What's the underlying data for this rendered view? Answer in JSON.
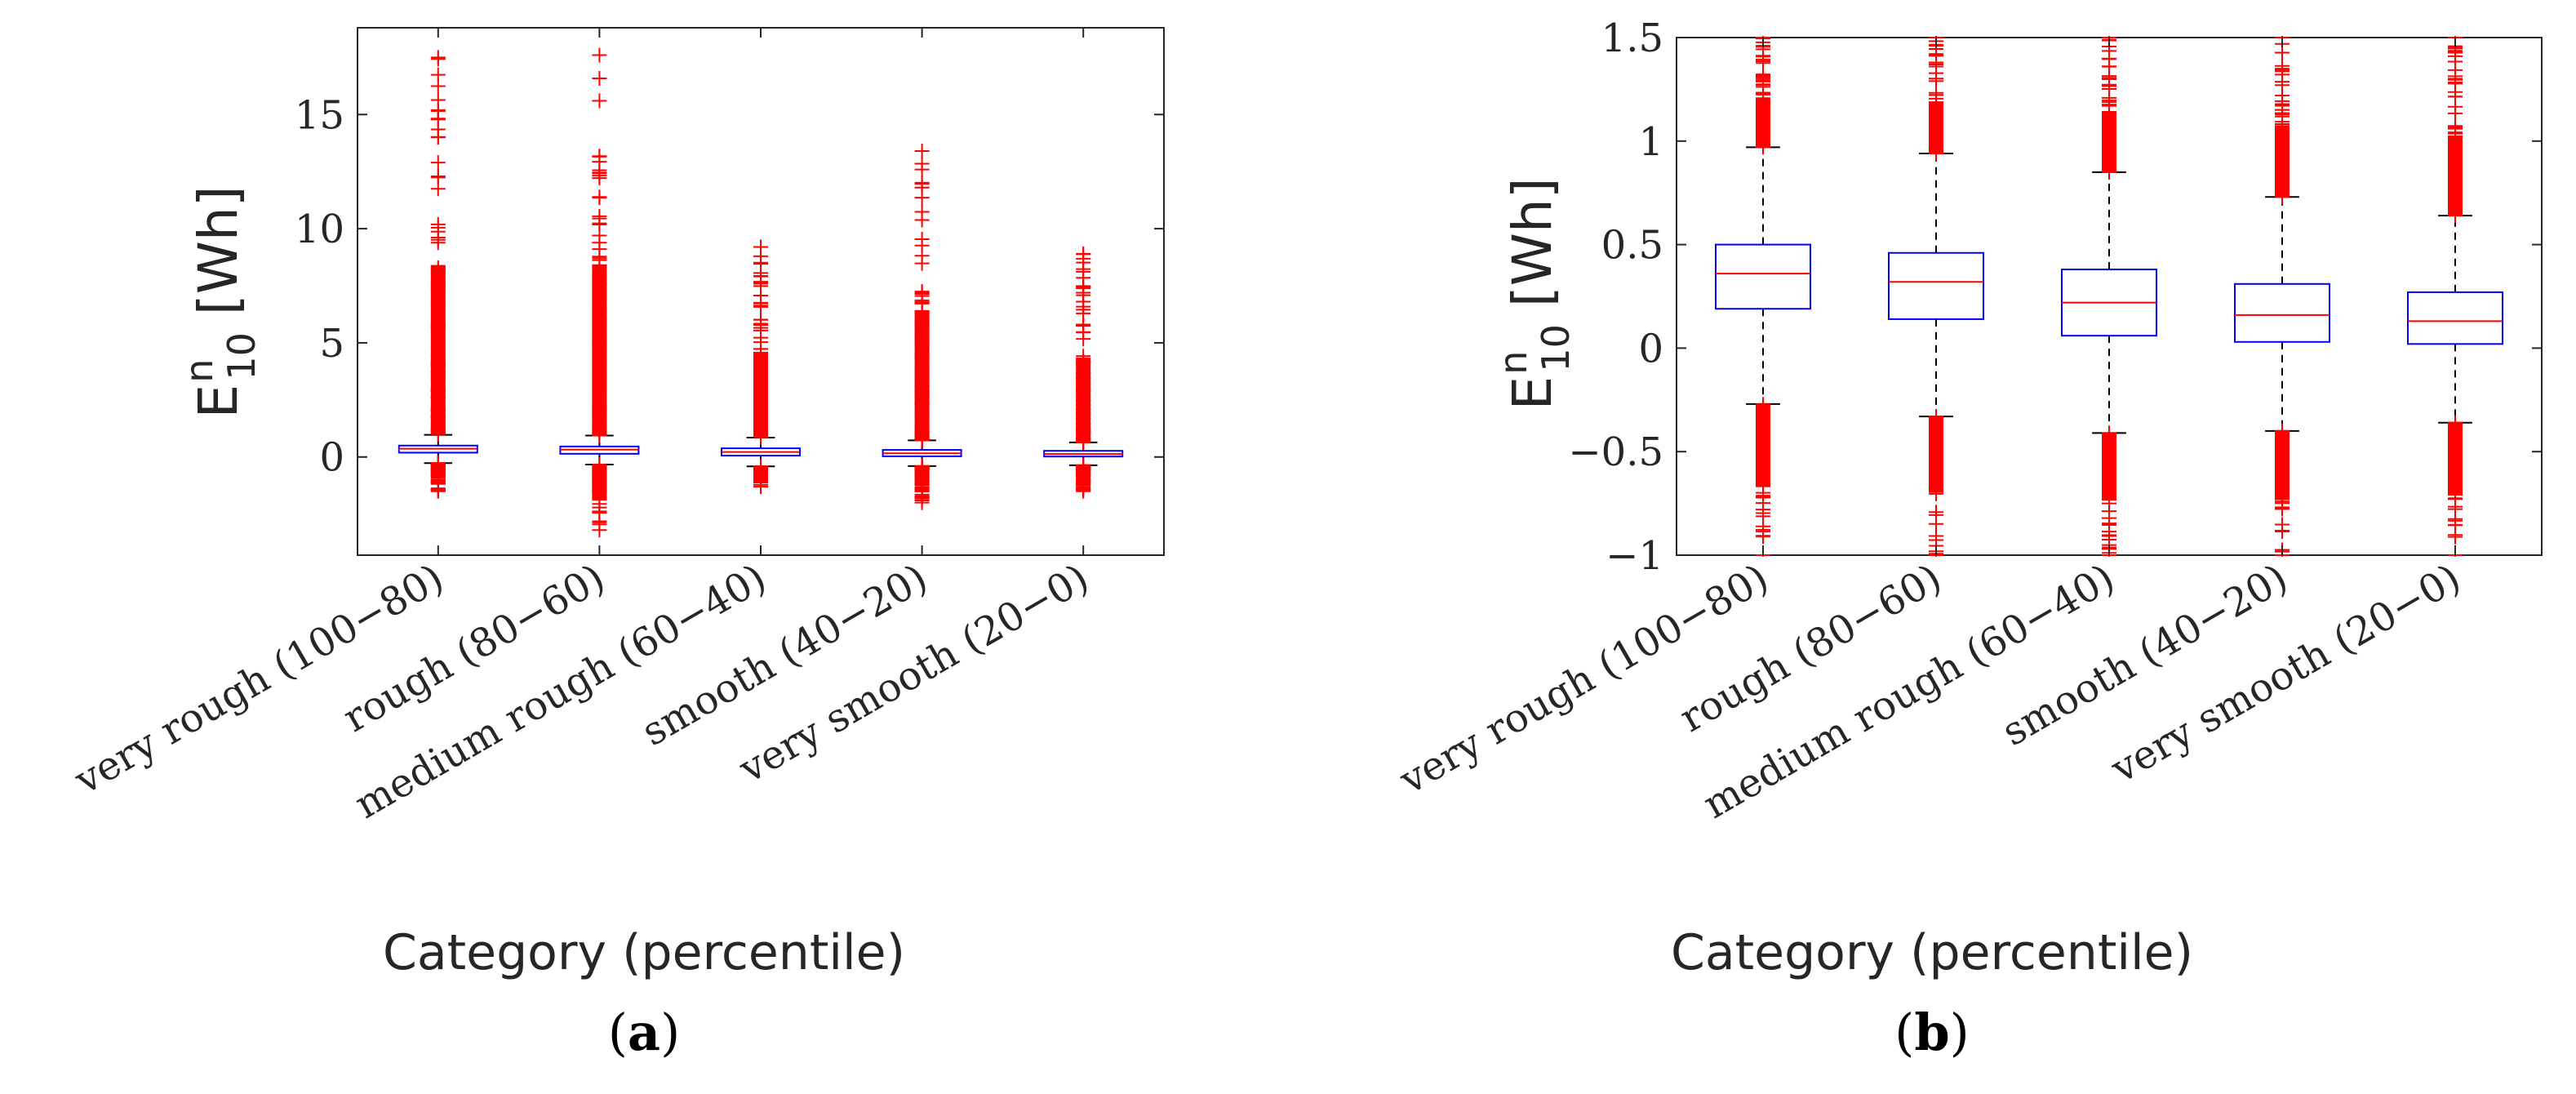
{
  "chart_data": [
    {
      "type": "box",
      "panel_label": "a",
      "ylabel_main": "E",
      "ylabel_sup": "n",
      "ylabel_sub": "10",
      "ylabel_unit": " [Wh]",
      "xlabel": "Category (percentile)",
      "categories": [
        "very rough (100−80)",
        "rough (80−60)",
        "medium rough (60−40)",
        "smooth (40−20)",
        "very smooth (20−0)"
      ],
      "ylim": [
        -4.3,
        18.8
      ],
      "yticks": [
        0,
        5,
        10,
        15
      ],
      "ytick_labels": [
        "0",
        "5",
        "10",
        "15"
      ],
      "series": [
        {
          "q1": 0.19,
          "median": 0.36,
          "q3": 0.5,
          "whisker_low": -0.27,
          "whisker_high": 0.97,
          "outlier_low": -1.5,
          "outlier_high": 17.5
        },
        {
          "q1": 0.14,
          "median": 0.32,
          "q3": 0.46,
          "whisker_low": -0.33,
          "whisker_high": 0.94,
          "outlier_low": -3.2,
          "outlier_high": 17.6
        },
        {
          "q1": 0.06,
          "median": 0.22,
          "q3": 0.38,
          "whisker_low": -0.41,
          "whisker_high": 0.85,
          "outlier_low": -1.3,
          "outlier_high": 9.2
        },
        {
          "q1": 0.03,
          "median": 0.16,
          "q3": 0.31,
          "whisker_low": -0.4,
          "whisker_high": 0.73,
          "outlier_low": -2.0,
          "outlier_high": 13.4
        },
        {
          "q1": 0.02,
          "median": 0.13,
          "q3": 0.27,
          "whisker_low": -0.36,
          "whisker_high": 0.64,
          "outlier_low": -1.5,
          "outlier_high": 8.9
        }
      ]
    },
    {
      "type": "box",
      "panel_label": "b",
      "ylabel_main": "E",
      "ylabel_sup": "n",
      "ylabel_sub": "10",
      "ylabel_unit": " [Wh]",
      "xlabel": "Category (percentile)",
      "categories": [
        "very rough (100−80)",
        "rough (80−60)",
        "medium rough (60−40)",
        "smooth (40−20)",
        "very smooth (20−0)"
      ],
      "ylim": [
        -1,
        1.5
      ],
      "yticks": [
        -1,
        -0.5,
        0,
        0.5,
        1,
        1.5
      ],
      "ytick_labels": [
        "−1",
        "−0.5",
        "0",
        "0.5",
        "1",
        "1.5"
      ],
      "series": [
        {
          "q1": 0.19,
          "median": 0.36,
          "q3": 0.5,
          "whisker_low": -0.27,
          "whisker_high": 0.97,
          "outlier_low": -1.0,
          "outlier_high": 1.5
        },
        {
          "q1": 0.14,
          "median": 0.32,
          "q3": 0.46,
          "whisker_low": -0.33,
          "whisker_high": 0.94,
          "outlier_low": -1.0,
          "outlier_high": 1.5
        },
        {
          "q1": 0.06,
          "median": 0.22,
          "q3": 0.38,
          "whisker_low": -0.41,
          "whisker_high": 0.85,
          "outlier_low": -1.0,
          "outlier_high": 1.5
        },
        {
          "q1": 0.03,
          "median": 0.16,
          "q3": 0.31,
          "whisker_low": -0.4,
          "whisker_high": 0.73,
          "outlier_low": -1.0,
          "outlier_high": 1.5
        },
        {
          "q1": 0.02,
          "median": 0.13,
          "q3": 0.27,
          "whisker_low": -0.36,
          "whisker_high": 0.64,
          "outlier_low": -1.0,
          "outlier_high": 1.5
        }
      ]
    }
  ],
  "colors": {
    "box": "#0000ff",
    "median": "#ff0000",
    "outlier": "#ff0000",
    "whisker": "#000000",
    "axis": "#262626"
  }
}
